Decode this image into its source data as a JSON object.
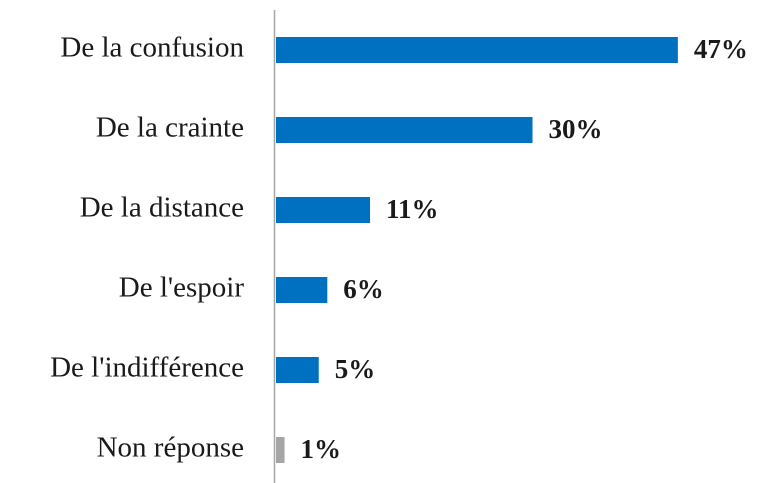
{
  "chart_data": {
    "type": "barh",
    "categories": [
      "De la confusion",
      "De la crainte",
      "De la distance",
      "De l'espoir",
      "De l'indifférence",
      "Non réponse"
    ],
    "values": [
      47,
      30,
      11,
      6,
      5,
      1
    ],
    "value_labels": [
      "47%",
      "30%",
      "11%",
      "6%",
      "5%",
      "1%"
    ],
    "colors": [
      "#0070c0",
      "#0070c0",
      "#0070c0",
      "#0070c0",
      "#0070c0",
      "#a6a6a6"
    ]
  }
}
